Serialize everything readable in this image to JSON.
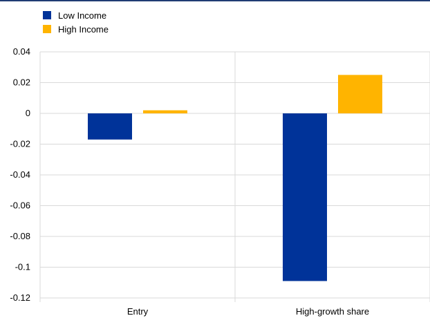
{
  "chart_data": {
    "type": "bar",
    "categories": [
      "Entry",
      "High-growth share"
    ],
    "series": [
      {
        "name": "Low Income",
        "color": "#003399",
        "values": [
          -0.017,
          -0.109
        ]
      },
      {
        "name": "High Income",
        "color": "#ffb400",
        "values": [
          0.002,
          0.025
        ]
      }
    ],
    "ylim": [
      -0.12,
      0.04
    ],
    "yticks": [
      0.04,
      0.02,
      0,
      -0.02,
      -0.04,
      -0.06,
      -0.08,
      -0.1,
      -0.12
    ],
    "ytick_labels": [
      "0.04",
      "0.02",
      "0",
      "-0.02",
      "-0.04",
      "-0.06",
      "-0.08",
      "-0.1",
      "-0.12"
    ],
    "grid": true,
    "legend_position": "top-left"
  }
}
